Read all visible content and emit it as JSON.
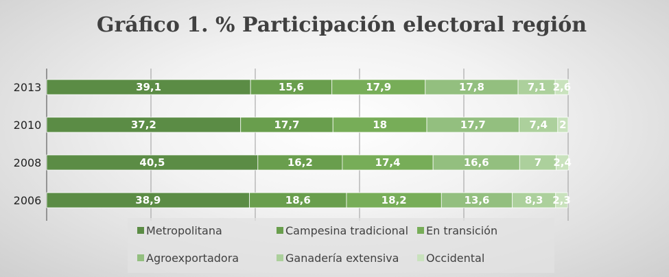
{
  "chart_data": {
    "type": "bar",
    "orientation": "horizontal",
    "stacked": true,
    "title": "Gráfico 1. % Participación electoral región",
    "categories": [
      "2013",
      "2010",
      "2008",
      "2006"
    ],
    "series": [
      {
        "name": "Metropolitana",
        "color": "#5b8c45",
        "values": [
          39.1,
          37.2,
          40.5,
          38.9
        ],
        "labels": [
          "39,1",
          "37,2",
          "40,5",
          "38,9"
        ]
      },
      {
        "name": "Campesina tradicional",
        "color": "#699e4d",
        "values": [
          15.6,
          17.7,
          16.2,
          18.6
        ],
        "labels": [
          "15,6",
          "17,7",
          "16,2",
          "18,6"
        ]
      },
      {
        "name": "En transición",
        "color": "#77ad58",
        "values": [
          17.9,
          18,
          17.4,
          18.2
        ],
        "labels": [
          "17,9",
          "18",
          "17,4",
          "18,2"
        ]
      },
      {
        "name": "Agroexportadora",
        "color": "#93bf7f",
        "values": [
          17.8,
          17.7,
          16.6,
          13.6
        ],
        "labels": [
          "17,8",
          "17,7",
          "16,6",
          "13,6"
        ]
      },
      {
        "name": "Ganadería extensiva",
        "color": "#acd09c",
        "values": [
          7.1,
          7.4,
          7,
          8.3
        ],
        "labels": [
          "7,1",
          "7,4",
          "7",
          "8,3"
        ]
      },
      {
        "name": "Occidental",
        "color": "#c9e2bd",
        "values": [
          2.6,
          2,
          2.4,
          2.3
        ],
        "labels": [
          "2,6",
          "2",
          "2,4",
          "2,3"
        ]
      }
    ],
    "xlim": [
      0,
      100
    ],
    "grid": true,
    "legend_position": "bottom"
  }
}
